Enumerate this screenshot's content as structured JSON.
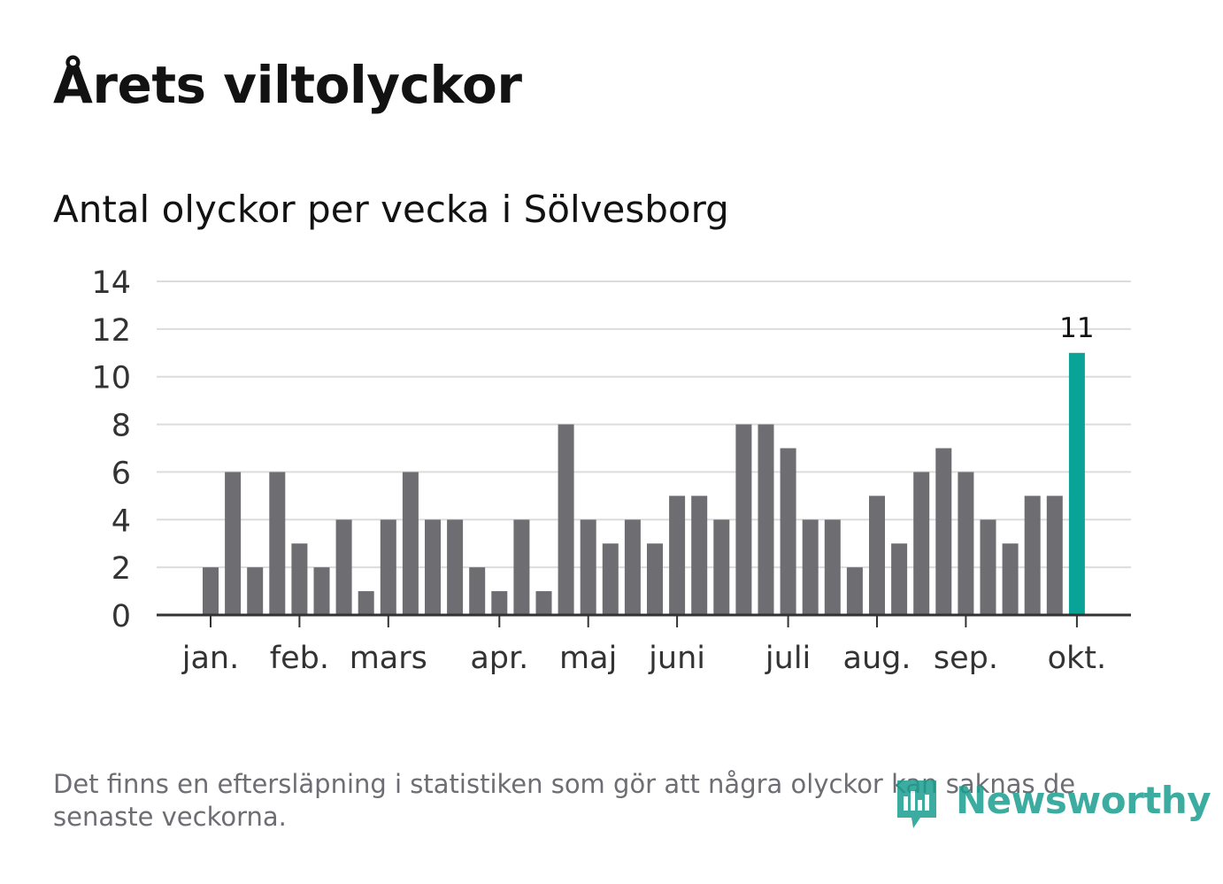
{
  "title": "Årets viltolyckor",
  "subtitle": "Antal olyckor per vecka i Sölvesborg",
  "footnote": "Det finns en eftersläpning i statistiken som gör att några olyckor kan saknas de senaste veckorna.",
  "brand": {
    "name": "Newsworthy",
    "icon": "newsworthy-logo-icon"
  },
  "colors": {
    "bar": "#6e6d72",
    "highlight": "#0aa398",
    "grid": "#dcdcdc",
    "axis": "#333333",
    "text": "#121212"
  },
  "chart_data": {
    "type": "bar",
    "title": "Antal olyckor per vecka i Sölvesborg",
    "xlabel": "",
    "ylabel": "",
    "ylim": [
      0,
      14
    ],
    "yticks": [
      0,
      2,
      4,
      6,
      8,
      10,
      12,
      14
    ],
    "x": [
      1,
      2,
      3,
      4,
      5,
      6,
      7,
      8,
      9,
      10,
      11,
      12,
      13,
      14,
      15,
      16,
      17,
      18,
      19,
      20,
      21,
      22,
      23,
      24,
      25,
      26,
      27,
      28,
      29,
      30,
      31,
      32,
      33,
      34,
      35,
      36,
      37,
      38,
      39,
      40
    ],
    "values": [
      2,
      6,
      2,
      6,
      3,
      2,
      4,
      1,
      4,
      6,
      4,
      4,
      2,
      1,
      4,
      1,
      8,
      4,
      3,
      4,
      3,
      5,
      5,
      4,
      8,
      8,
      7,
      4,
      4,
      2,
      5,
      3,
      6,
      7,
      6,
      4,
      3,
      5,
      5,
      11
    ],
    "highlight_index": 39,
    "highlight_label": "11",
    "months": [
      {
        "label": "jan.",
        "week": 1
      },
      {
        "label": "feb.",
        "week": 5
      },
      {
        "label": "mars",
        "week": 9
      },
      {
        "label": "apr.",
        "week": 14
      },
      {
        "label": "maj",
        "week": 18
      },
      {
        "label": "juni",
        "week": 22
      },
      {
        "label": "juli",
        "week": 27
      },
      {
        "label": "aug.",
        "week": 31
      },
      {
        "label": "sep.",
        "week": 35
      },
      {
        "label": "okt.",
        "week": 40
      }
    ]
  }
}
